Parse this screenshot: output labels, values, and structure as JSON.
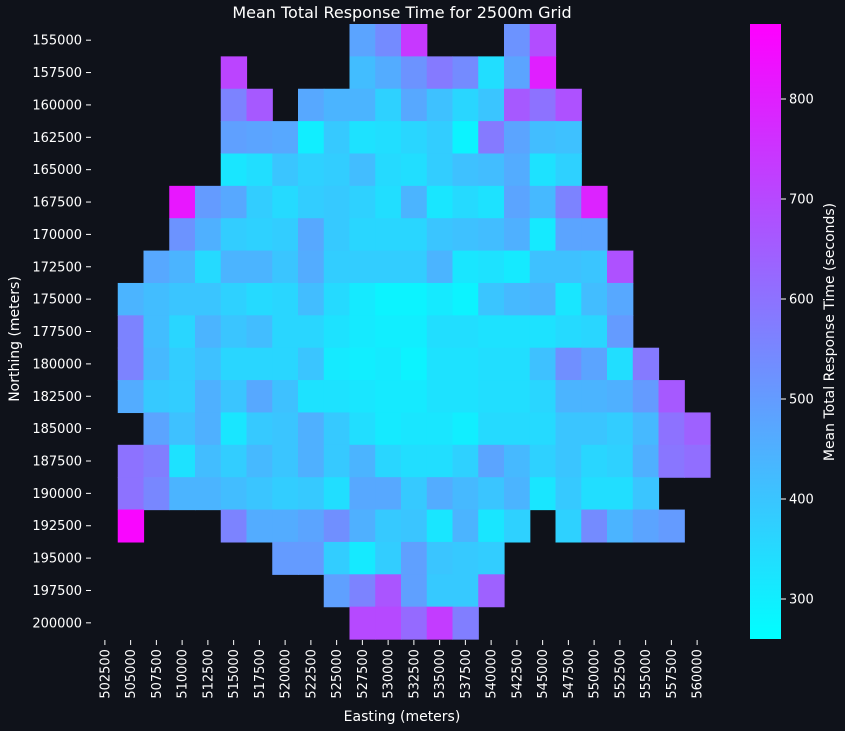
{
  "chart_data": {
    "type": "heatmap",
    "title": "Mean Total Response Time for 2500m Grid",
    "xlabel": "Easting (meters)",
    "ylabel": "Northing (meters)",
    "colorbar_label": "Mean Total Response Time (seconds)",
    "colorbar_range": [
      260,
      875
    ],
    "colorbar_ticks": [
      300,
      400,
      500,
      600,
      700,
      800
    ],
    "colormap": [
      "#00ffff",
      "#ff00ff"
    ],
    "grid": false,
    "x": [
      "502500",
      "505000",
      "507500",
      "510000",
      "512500",
      "515000",
      "517500",
      "520000",
      "522500",
      "525000",
      "527500",
      "530000",
      "532500",
      "535000",
      "537500",
      "540000",
      "542500",
      "545000",
      "547500",
      "550000",
      "552500",
      "555000",
      "557500",
      "560000"
    ],
    "y": [
      "155000",
      "157500",
      "160000",
      "162500",
      "165000",
      "167500",
      "170000",
      "172500",
      "175000",
      "177500",
      "180000",
      "182500",
      "185000",
      "187500",
      "190000",
      "192500",
      "195000",
      "197500",
      "200000"
    ],
    "values": [
      [
        null,
        null,
        null,
        null,
        null,
        null,
        null,
        null,
        null,
        null,
        480,
        540,
        740,
        null,
        null,
        null,
        520,
        690,
        null,
        null,
        null,
        null,
        null,
        null
      ],
      [
        null,
        null,
        null,
        null,
        null,
        710,
        null,
        null,
        null,
        null,
        420,
        460,
        520,
        580,
        540,
        340,
        480,
        800,
        null,
        null,
        null,
        null,
        null,
        null
      ],
      [
        null,
        null,
        null,
        null,
        null,
        560,
        660,
        null,
        470,
        440,
        440,
        370,
        470,
        410,
        360,
        400,
        660,
        600,
        680,
        null,
        null,
        null,
        null,
        null
      ],
      [
        null,
        null,
        null,
        null,
        null,
        490,
        480,
        470,
        300,
        390,
        330,
        340,
        360,
        380,
        290,
        580,
        480,
        420,
        410,
        null,
        null,
        null,
        null,
        null
      ],
      [
        null,
        null,
        null,
        null,
        null,
        320,
        340,
        400,
        370,
        380,
        420,
        350,
        340,
        380,
        410,
        420,
        460,
        330,
        370,
        null,
        null,
        null,
        null,
        null
      ],
      [
        null,
        null,
        null,
        820,
        500,
        470,
        380,
        350,
        380,
        390,
        370,
        340,
        440,
        320,
        350,
        330,
        480,
        430,
        560,
        790,
        null,
        null,
        null,
        null
      ],
      [
        null,
        null,
        null,
        520,
        450,
        380,
        370,
        380,
        470,
        390,
        360,
        360,
        360,
        400,
        410,
        420,
        450,
        310,
        480,
        480,
        null,
        null,
        null,
        null
      ],
      [
        null,
        null,
        470,
        440,
        350,
        440,
        440,
        400,
        460,
        380,
        380,
        380,
        380,
        440,
        320,
        330,
        310,
        410,
        410,
        400,
        680,
        null,
        null,
        null
      ],
      [
        null,
        440,
        420,
        400,
        400,
        370,
        350,
        360,
        420,
        350,
        310,
        290,
        290,
        310,
        290,
        400,
        430,
        440,
        320,
        420,
        470,
        null,
        null,
        null
      ],
      [
        null,
        560,
        420,
        360,
        440,
        400,
        420,
        360,
        360,
        330,
        310,
        300,
        300,
        340,
        340,
        330,
        330,
        330,
        350,
        360,
        500,
        null,
        null,
        null
      ],
      [
        null,
        560,
        430,
        380,
        410,
        360,
        360,
        360,
        400,
        310,
        300,
        310,
        290,
        330,
        330,
        340,
        340,
        410,
        530,
        480,
        340,
        580,
        null,
        null
      ],
      [
        null,
        460,
        390,
        380,
        450,
        400,
        470,
        410,
        330,
        330,
        320,
        310,
        310,
        330,
        330,
        340,
        340,
        360,
        440,
        440,
        450,
        500,
        660,
        null
      ],
      [
        null,
        null,
        480,
        410,
        450,
        320,
        390,
        400,
        450,
        390,
        340,
        310,
        320,
        320,
        300,
        350,
        350,
        350,
        400,
        400,
        380,
        430,
        600,
        640
      ],
      [
        null,
        600,
        570,
        330,
        420,
        380,
        430,
        400,
        450,
        390,
        440,
        360,
        340,
        340,
        370,
        480,
        430,
        370,
        400,
        360,
        370,
        450,
        590,
        610
      ],
      [
        null,
        600,
        550,
        440,
        440,
        420,
        400,
        380,
        390,
        340,
        470,
        470,
        390,
        460,
        430,
        400,
        440,
        320,
        390,
        340,
        340,
        400,
        null,
        null
      ],
      [
        null,
        860,
        null,
        null,
        null,
        560,
        460,
        460,
        480,
        530,
        450,
        390,
        400,
        320,
        440,
        320,
        370,
        null,
        370,
        540,
        440,
        480,
        500,
        null
      ],
      [
        null,
        null,
        null,
        null,
        null,
        null,
        null,
        500,
        500,
        380,
        310,
        380,
        490,
        400,
        390,
        380,
        null,
        null,
        null,
        null,
        null,
        null,
        null,
        null
      ],
      [
        null,
        null,
        null,
        null,
        null,
        null,
        null,
        null,
        null,
        490,
        560,
        670,
        490,
        390,
        390,
        640,
        null,
        null,
        null,
        null,
        null,
        null,
        null,
        null
      ],
      [
        null,
        null,
        null,
        null,
        null,
        null,
        null,
        null,
        null,
        null,
        700,
        700,
        620,
        730,
        570,
        null,
        null,
        null,
        null,
        null,
        null,
        null,
        null,
        null
      ]
    ]
  }
}
